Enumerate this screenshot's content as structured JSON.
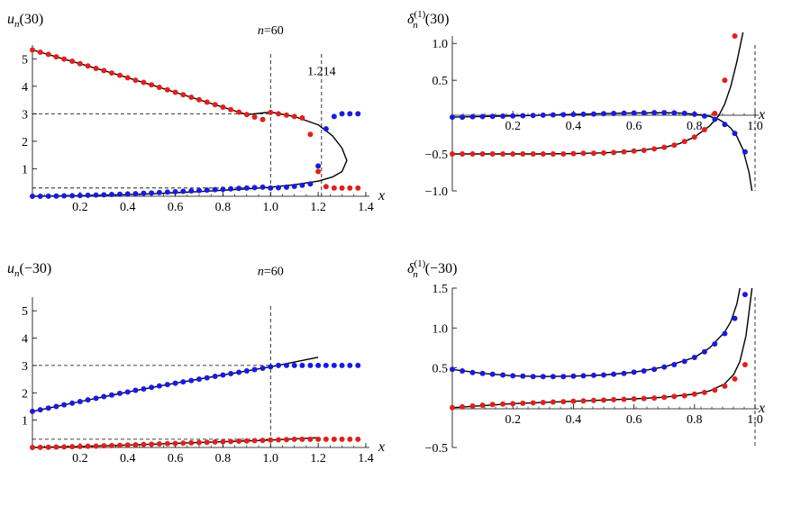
{
  "chart_data": [
    {
      "type": "scatter",
      "panel": "top-left",
      "ylabel": "u_n(30)",
      "xlabel": "x",
      "xlim": [
        0,
        1.4
      ],
      "ylim": [
        0,
        5.5
      ],
      "xticks": [
        "0.2",
        "0.4",
        "0.6",
        "0.8",
        "1.0",
        "1.2",
        "1.4"
      ],
      "yticks": [
        "1",
        "2",
        "3",
        "4",
        "5"
      ],
      "annotations": [
        {
          "text": "n=60",
          "x": 1.0,
          "y": 5.9
        },
        {
          "text": "1.214",
          "x": 1.214,
          "y": 4.4
        }
      ],
      "reference_lines": {
        "vertical": [
          1.0,
          1.214
        ],
        "horizontal": [
          3.0,
          0.3
        ]
      },
      "series": [
        {
          "color": "#e0201b",
          "marker": "dot",
          "x": [
            0.0,
            0.033,
            0.067,
            0.1,
            0.133,
            0.167,
            0.2,
            0.233,
            0.267,
            0.3,
            0.333,
            0.367,
            0.4,
            0.433,
            0.467,
            0.5,
            0.533,
            0.567,
            0.6,
            0.633,
            0.667,
            0.7,
            0.733,
            0.767,
            0.8,
            0.833,
            0.867,
            0.9,
            0.933,
            0.967,
            1.0,
            1.033,
            1.067,
            1.1,
            1.133,
            1.167,
            1.2,
            1.233,
            1.267,
            1.3,
            1.333,
            1.367
          ],
          "y": [
            5.32,
            5.24,
            5.16,
            5.07,
            4.99,
            4.91,
            4.82,
            4.74,
            4.65,
            4.57,
            4.48,
            4.4,
            4.31,
            4.22,
            4.14,
            4.05,
            3.96,
            3.87,
            3.78,
            3.69,
            3.6,
            3.51,
            3.42,
            3.33,
            3.24,
            3.15,
            3.06,
            2.97,
            2.88,
            2.79,
            3.05,
            3.0,
            2.95,
            2.9,
            2.85,
            2.25,
            0.9,
            0.35,
            0.3,
            0.3,
            0.3,
            0.3
          ]
        },
        {
          "color": "#1a1ae0",
          "marker": "dot",
          "x": [
            0.0,
            0.033,
            0.067,
            0.1,
            0.133,
            0.167,
            0.2,
            0.233,
            0.267,
            0.3,
            0.333,
            0.367,
            0.4,
            0.433,
            0.467,
            0.5,
            0.533,
            0.567,
            0.6,
            0.633,
            0.667,
            0.7,
            0.733,
            0.767,
            0.8,
            0.833,
            0.867,
            0.9,
            0.933,
            0.967,
            1.0,
            1.033,
            1.067,
            1.1,
            1.133,
            1.167,
            1.2,
            1.233,
            1.267,
            1.3,
            1.333,
            1.367
          ],
          "y": [
            0.0,
            0.0,
            0.005,
            0.01,
            0.015,
            0.02,
            0.03,
            0.035,
            0.045,
            0.055,
            0.065,
            0.075,
            0.085,
            0.095,
            0.11,
            0.12,
            0.135,
            0.15,
            0.165,
            0.18,
            0.195,
            0.21,
            0.225,
            0.24,
            0.255,
            0.27,
            0.285,
            0.3,
            0.315,
            0.33,
            0.3,
            0.31,
            0.33,
            0.36,
            0.4,
            0.45,
            1.1,
            2.45,
            2.9,
            3.0,
            3.0,
            3.0
          ]
        },
        {
          "color": "#000000",
          "marker": "line",
          "name_role": "curve",
          "x": [
            0.0,
            0.1,
            0.2,
            0.3,
            0.4,
            0.5,
            0.6,
            0.7,
            0.8,
            0.9,
            1.0,
            1.1,
            1.2,
            1.26,
            1.3,
            1.32,
            1.3,
            1.26,
            1.2,
            1.1,
            1.0,
            0.9,
            0.8,
            0.7,
            0.6,
            0.5,
            0.4,
            0.3,
            0.2,
            0.1,
            0.0
          ],
          "y": [
            5.32,
            5.07,
            4.82,
            4.57,
            4.31,
            4.05,
            3.78,
            3.51,
            3.24,
            2.97,
            3.06,
            2.9,
            2.6,
            2.2,
            1.75,
            1.3,
            0.9,
            0.7,
            0.55,
            0.42,
            0.33,
            0.27,
            0.22,
            0.17,
            0.13,
            0.09,
            0.06,
            0.04,
            0.02,
            0.01,
            0.0
          ]
        }
      ]
    },
    {
      "type": "scatter",
      "panel": "top-right",
      "ylabel": "δ_n^(1)(30)",
      "xlabel": "x",
      "xlim": [
        0,
        1.0
      ],
      "ylim": [
        -1.0,
        1.1
      ],
      "xticks": [
        "0.2",
        "0.4",
        "0.6",
        "0.8",
        "1.0"
      ],
      "yticks": [
        "1.0",
        "0.5",
        "−0.5",
        "−1.0"
      ],
      "reference_lines": {
        "vertical": [
          1.0
        ]
      },
      "series": [
        {
          "color": "#1a1ae0",
          "marker": "dot",
          "x": [
            0.0,
            0.033,
            0.067,
            0.1,
            0.133,
            0.167,
            0.2,
            0.233,
            0.267,
            0.3,
            0.333,
            0.367,
            0.4,
            0.433,
            0.467,
            0.5,
            0.533,
            0.567,
            0.6,
            0.633,
            0.667,
            0.7,
            0.733,
            0.767,
            0.8,
            0.833,
            0.867,
            0.9,
            0.933,
            0.967
          ],
          "y": [
            0.0,
            0.0,
            0.005,
            0.008,
            0.01,
            0.013,
            0.016,
            0.02,
            0.023,
            0.027,
            0.03,
            0.033,
            0.037,
            0.04,
            0.043,
            0.047,
            0.05,
            0.053,
            0.056,
            0.058,
            0.06,
            0.06,
            0.058,
            0.052,
            0.04,
            0.015,
            -0.03,
            -0.1,
            -0.22,
            -0.47
          ]
        },
        {
          "color": "#e0201b",
          "marker": "dot",
          "x": [
            0.0,
            0.033,
            0.067,
            0.1,
            0.133,
            0.167,
            0.2,
            0.233,
            0.267,
            0.3,
            0.333,
            0.367,
            0.4,
            0.433,
            0.467,
            0.5,
            0.533,
            0.567,
            0.6,
            0.633,
            0.667,
            0.7,
            0.733,
            0.767,
            0.8,
            0.833,
            0.867,
            0.9,
            0.933
          ],
          "y": [
            -0.5,
            -0.5,
            -0.5,
            -0.5,
            -0.5,
            -0.5,
            -0.5,
            -0.5,
            -0.5,
            -0.5,
            -0.5,
            -0.5,
            -0.495,
            -0.49,
            -0.49,
            -0.485,
            -0.48,
            -0.47,
            -0.46,
            -0.45,
            -0.43,
            -0.41,
            -0.38,
            -0.33,
            -0.27,
            -0.17,
            0.05,
            0.5,
            1.1
          ]
        },
        {
          "color": "#000000",
          "marker": "line",
          "x": [
            0.0,
            0.1,
            0.2,
            0.3,
            0.4,
            0.5,
            0.6,
            0.7,
            0.75,
            0.8,
            0.85,
            0.88,
            0.9,
            0.92,
            0.94,
            0.96,
            0.98,
            0.99
          ],
          "y": [
            0.0,
            0.008,
            0.016,
            0.027,
            0.037,
            0.047,
            0.056,
            0.06,
            0.055,
            0.04,
            0.01,
            -0.03,
            -0.08,
            -0.15,
            -0.26,
            -0.44,
            -0.75,
            -1.0
          ]
        },
        {
          "color": "#000000",
          "marker": "line",
          "x": [
            0.0,
            0.1,
            0.2,
            0.3,
            0.4,
            0.5,
            0.6,
            0.7,
            0.75,
            0.8,
            0.85,
            0.88,
            0.9,
            0.92,
            0.94,
            0.96
          ],
          "y": [
            -0.5,
            -0.5,
            -0.5,
            -0.5,
            -0.495,
            -0.485,
            -0.46,
            -0.41,
            -0.36,
            -0.27,
            -0.12,
            0.02,
            0.18,
            0.42,
            0.75,
            1.15
          ]
        }
      ]
    },
    {
      "type": "scatter",
      "panel": "bottom-left",
      "ylabel": "u_n(−30)",
      "xlabel": "x",
      "xlim": [
        0,
        1.4
      ],
      "ylim": [
        0,
        5.5
      ],
      "xticks": [
        "0.2",
        "0.4",
        "0.6",
        "0.8",
        "1.0",
        "1.2",
        "1.4"
      ],
      "yticks": [
        "1",
        "2",
        "3",
        "4",
        "5"
      ],
      "annotations": [
        {
          "text": "n=60",
          "x": 1.0,
          "y": 6.3
        }
      ],
      "reference_lines": {
        "vertical": [
          1.0
        ],
        "horizontal": [
          3.0,
          0.3
        ]
      },
      "series": [
        {
          "color": "#1a1ae0",
          "marker": "dot",
          "x": [
            0.0,
            0.033,
            0.067,
            0.1,
            0.133,
            0.167,
            0.2,
            0.233,
            0.267,
            0.3,
            0.333,
            0.367,
            0.4,
            0.433,
            0.467,
            0.5,
            0.533,
            0.567,
            0.6,
            0.633,
            0.667,
            0.7,
            0.733,
            0.767,
            0.8,
            0.833,
            0.867,
            0.9,
            0.933,
            0.967,
            1.0,
            1.033,
            1.067,
            1.1,
            1.133,
            1.167,
            1.2,
            1.233,
            1.267,
            1.3,
            1.333,
            1.367
          ],
          "y": [
            1.32,
            1.38,
            1.44,
            1.5,
            1.56,
            1.62,
            1.68,
            1.74,
            1.8,
            1.86,
            1.92,
            1.98,
            2.03,
            2.09,
            2.14,
            2.2,
            2.25,
            2.3,
            2.35,
            2.4,
            2.45,
            2.5,
            2.55,
            2.6,
            2.65,
            2.7,
            2.75,
            2.8,
            2.85,
            2.9,
            2.95,
            3.0,
            3.0,
            3.0,
            3.0,
            3.0,
            3.0,
            3.0,
            3.0,
            3.0,
            3.0,
            3.0
          ]
        },
        {
          "color": "#e0201b",
          "marker": "dot",
          "x": [
            0.0,
            0.033,
            0.067,
            0.1,
            0.133,
            0.167,
            0.2,
            0.233,
            0.267,
            0.3,
            0.333,
            0.367,
            0.4,
            0.433,
            0.467,
            0.5,
            0.533,
            0.567,
            0.6,
            0.633,
            0.667,
            0.7,
            0.733,
            0.767,
            0.8,
            0.833,
            0.867,
            0.9,
            0.933,
            0.967,
            1.0,
            1.033,
            1.067,
            1.1,
            1.133,
            1.167,
            1.2,
            1.233,
            1.267,
            1.3,
            1.333,
            1.367
          ],
          "y": [
            0.0,
            0.005,
            0.01,
            0.015,
            0.02,
            0.03,
            0.035,
            0.045,
            0.05,
            0.06,
            0.07,
            0.08,
            0.09,
            0.1,
            0.11,
            0.12,
            0.13,
            0.14,
            0.15,
            0.16,
            0.17,
            0.18,
            0.19,
            0.2,
            0.21,
            0.22,
            0.23,
            0.24,
            0.25,
            0.26,
            0.27,
            0.28,
            0.29,
            0.3,
            0.3,
            0.3,
            0.3,
            0.3,
            0.3,
            0.3,
            0.3,
            0.3
          ]
        },
        {
          "color": "#000000",
          "marker": "line",
          "x": [
            0.0,
            0.2,
            0.4,
            0.6,
            0.8,
            1.0,
            1.2
          ],
          "y": [
            1.32,
            1.68,
            2.03,
            2.35,
            2.65,
            2.95,
            3.3
          ]
        },
        {
          "color": "#000000",
          "marker": "line",
          "x": [
            0.0,
            0.2,
            0.4,
            0.6,
            0.8,
            1.0,
            1.2
          ],
          "y": [
            0.0,
            0.035,
            0.09,
            0.15,
            0.21,
            0.27,
            0.36
          ]
        }
      ]
    },
    {
      "type": "scatter",
      "panel": "bottom-right",
      "ylabel": "δ_n^(1)(−30)",
      "xlabel": "x",
      "xlim": [
        0,
        1.0
      ],
      "ylim": [
        -0.5,
        1.5
      ],
      "xticks": [
        "0.2",
        "0.4",
        "0.6",
        "0.8",
        "1.0"
      ],
      "yticks": [
        "1.5",
        "1.0",
        "0.5",
        "−0.5"
      ],
      "reference_lines": {
        "vertical": [
          1.0
        ]
      },
      "series": [
        {
          "color": "#1a1ae0",
          "marker": "dot",
          "x": [
            0.0,
            0.033,
            0.067,
            0.1,
            0.133,
            0.167,
            0.2,
            0.233,
            0.267,
            0.3,
            0.333,
            0.367,
            0.4,
            0.433,
            0.467,
            0.5,
            0.533,
            0.567,
            0.6,
            0.633,
            0.667,
            0.7,
            0.733,
            0.767,
            0.8,
            0.833,
            0.867,
            0.9,
            0.933,
            0.967
          ],
          "y": [
            0.48,
            0.46,
            0.44,
            0.43,
            0.42,
            0.41,
            0.4,
            0.395,
            0.39,
            0.39,
            0.39,
            0.39,
            0.395,
            0.4,
            0.405,
            0.41,
            0.42,
            0.43,
            0.445,
            0.46,
            0.48,
            0.51,
            0.54,
            0.58,
            0.63,
            0.7,
            0.8,
            0.93,
            1.12,
            1.42
          ]
        },
        {
          "color": "#e0201b",
          "marker": "dot",
          "x": [
            0.0,
            0.033,
            0.067,
            0.1,
            0.133,
            0.167,
            0.2,
            0.233,
            0.267,
            0.3,
            0.333,
            0.367,
            0.4,
            0.433,
            0.467,
            0.5,
            0.533,
            0.567,
            0.6,
            0.633,
            0.667,
            0.7,
            0.733,
            0.767,
            0.8,
            0.833,
            0.867,
            0.9,
            0.933,
            0.967
          ],
          "y": [
            0.0,
            0.01,
            0.02,
            0.03,
            0.04,
            0.045,
            0.05,
            0.055,
            0.06,
            0.065,
            0.07,
            0.075,
            0.08,
            0.085,
            0.09,
            0.095,
            0.1,
            0.105,
            0.11,
            0.115,
            0.12,
            0.13,
            0.14,
            0.15,
            0.17,
            0.19,
            0.22,
            0.27,
            0.36,
            0.54
          ]
        },
        {
          "color": "#000000",
          "marker": "line",
          "x": [
            0.0,
            0.1,
            0.2,
            0.3,
            0.4,
            0.5,
            0.6,
            0.7,
            0.8,
            0.85,
            0.9,
            0.92,
            0.94,
            0.95
          ],
          "y": [
            0.48,
            0.43,
            0.4,
            0.39,
            0.395,
            0.41,
            0.445,
            0.51,
            0.63,
            0.75,
            0.95,
            1.08,
            1.3,
            1.5
          ]
        },
        {
          "color": "#000000",
          "marker": "line",
          "x": [
            0.0,
            0.2,
            0.4,
            0.6,
            0.7,
            0.8,
            0.85,
            0.9,
            0.93,
            0.95,
            0.97,
            0.98,
            0.99
          ],
          "y": [
            0.0,
            0.05,
            0.08,
            0.11,
            0.13,
            0.17,
            0.21,
            0.3,
            0.42,
            0.58,
            0.9,
            1.2,
            1.5
          ]
        }
      ]
    }
  ]
}
